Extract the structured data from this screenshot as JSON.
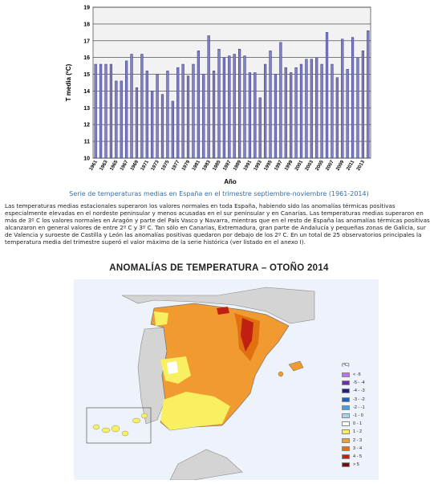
{
  "chart_data": {
    "type": "bar",
    "xlabel": "Año",
    "ylabel": "T media (ºC)",
    "ylim": [
      10,
      19
    ],
    "yticks": [
      10,
      11,
      12,
      13,
      14,
      15,
      16,
      17,
      18,
      19
    ],
    "grid": true,
    "bar_color": "#8080c8",
    "x": [
      1961,
      1962,
      1963,
      1964,
      1965,
      1966,
      1967,
      1968,
      1969,
      1970,
      1971,
      1972,
      1973,
      1974,
      1975,
      1976,
      1977,
      1978,
      1979,
      1980,
      1981,
      1982,
      1983,
      1984,
      1985,
      1986,
      1987,
      1988,
      1989,
      1990,
      1991,
      1992,
      1993,
      1994,
      1995,
      1996,
      1997,
      1998,
      1999,
      2000,
      2001,
      2002,
      2003,
      2004,
      2005,
      2006,
      2007,
      2008,
      2009,
      2010,
      2011,
      2012,
      2013,
      2014
    ],
    "xtick_labels": [
      "1961",
      "1963",
      "1965",
      "1967",
      "1969",
      "1971",
      "1973",
      "1975",
      "1977",
      "1979",
      "1981",
      "1983",
      "1985",
      "1987",
      "1989",
      "1991",
      "1993",
      "1995",
      "1997",
      "1999",
      "2001",
      "2003",
      "2005",
      "2007",
      "2009",
      "2011",
      "2013"
    ],
    "values": [
      15.6,
      15.6,
      15.6,
      15.6,
      14.6,
      14.6,
      15.8,
      16.2,
      14.2,
      16.2,
      15.2,
      14.0,
      15.0,
      13.8,
      15.2,
      13.4,
      15.4,
      15.6,
      14.9,
      15.6,
      16.4,
      15.0,
      17.3,
      15.2,
      16.5,
      16.0,
      16.1,
      16.2,
      16.5,
      16.1,
      15.1,
      15.1,
      13.6,
      15.6,
      16.4,
      15.0,
      16.9,
      15.4,
      15.1,
      15.4,
      15.6,
      15.9,
      15.9,
      16.0,
      15.6,
      17.5,
      15.6,
      14.8,
      17.1,
      15.3,
      17.2,
      16.0,
      16.4,
      17.6
    ]
  },
  "caption": "Serie de temperaturas medias en España en el trimestre septiembre-noviembre (1961-2014)",
  "paragraph": "Las temperaturas medias estacionales superaron los valores normales en toda España, habiendo sido las anomalías térmicas positivas especialmente elevadas en el nordeste peninsular y menos acusadas en el sur peninsular y en Canarias. Las temperaturas medias superaron en más de 3º C los valores normales en Aragón y parte del País Vasco y Navarra, mientras que en el resto de España las anomalías térmicas positivas alcanzaron en general valores de entre 2º C y 3º C. Tan sólo en Canarias, Extremadura, gran parte de Andalucía y pequeñas zonas de Galicia, sur de Valencia y suroeste de Castilla y León las anomalías positivas quedaron por debajo de los 2º C. En un total de 25 observatorios principales la temperatura media del trimestre superó el valor máximo de la serie histórica (ver listado en el anexo I).",
  "map": {
    "title": "ANOMALÍAS DE TEMPERATURA – OTOÑO 2014",
    "legend_title": "(ºC)",
    "legend": [
      {
        "label": "< -5",
        "color": "#c070e0"
      },
      {
        "label": "-5 - -4",
        "color": "#7030a0"
      },
      {
        "label": "-4 - -3",
        "color": "#20208a"
      },
      {
        "label": "-3 - -2",
        "color": "#2060c0"
      },
      {
        "label": "-2 - -1",
        "color": "#40a0e0"
      },
      {
        "label": "-1 - 0",
        "color": "#a0d8f0"
      },
      {
        "label": "0 - 1",
        "color": "#ffffff"
      },
      {
        "label": "1 - 2",
        "color": "#f8f060"
      },
      {
        "label": "2 - 3",
        "color": "#f0a030"
      },
      {
        "label": "3 - 4",
        "color": "#e07010"
      },
      {
        "label": "4 - 5",
        "color": "#c02010"
      },
      {
        "label": "> 5",
        "color": "#701010"
      }
    ]
  }
}
